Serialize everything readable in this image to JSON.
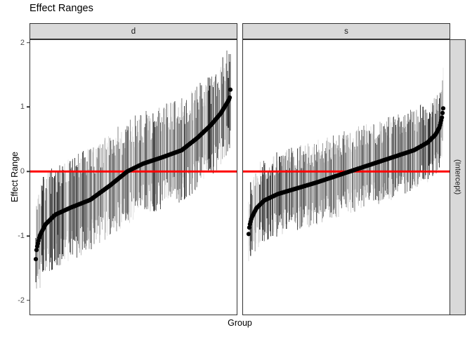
{
  "title": "Effect Ranges",
  "axes": {
    "y_title": "Effect Range",
    "x_title": "Group",
    "y_tick_labels": [
      "2",
      "1",
      "0",
      "-1",
      "-2"
    ]
  },
  "facets": {
    "column_labels": [
      "d",
      "s"
    ],
    "row_label": "(Intercept)"
  },
  "colors": {
    "reference_line": "#ff0000",
    "strip_fill": "#d9d9d9",
    "panel_border": "#333333",
    "point_color": "#000000",
    "axis_text": "#4d4d4d"
  },
  "chart_data": {
    "type": "pointrange-caterpillar",
    "title": "Effect Ranges",
    "xlabel": "Group",
    "ylabel": "Effect Range",
    "ylim": [
      -2.22,
      2.04
    ],
    "yticks": [
      2,
      1,
      0,
      -1,
      -2
    ],
    "x_tick_labels": "none",
    "reference_line_y": 0,
    "legend": "none",
    "grid": "off",
    "facet_row_label": "(Intercept)",
    "facets": [
      {
        "label": "d",
        "n_groups": 285,
        "estimate_range": [
          -1.36,
          1.27
        ],
        "estimate_quantiles": [
          [
            0,
            -1.36
          ],
          [
            0.004,
            -1.2
          ],
          [
            0.02,
            -1.0
          ],
          [
            0.05,
            -0.82
          ],
          [
            0.1,
            -0.67
          ],
          [
            0.18,
            -0.56
          ],
          [
            0.28,
            -0.44
          ],
          [
            0.38,
            -0.22
          ],
          [
            0.47,
            0.0
          ],
          [
            0.55,
            0.12
          ],
          [
            0.65,
            0.22
          ],
          [
            0.75,
            0.33
          ],
          [
            0.83,
            0.52
          ],
          [
            0.9,
            0.72
          ],
          [
            0.95,
            0.9
          ],
          [
            0.98,
            1.05
          ],
          [
            0.996,
            1.13
          ],
          [
            1.0,
            1.27
          ]
        ],
        "bar_half_length_range": [
          0.32,
          0.82
        ],
        "seed": 7
      },
      {
        "label": "s",
        "n_groups": 300,
        "estimate_range": [
          -0.97,
          0.98
        ],
        "estimate_quantiles": [
          [
            0,
            -0.97
          ],
          [
            0.004,
            -0.85
          ],
          [
            0.015,
            -0.72
          ],
          [
            0.04,
            -0.57
          ],
          [
            0.08,
            -0.45
          ],
          [
            0.15,
            -0.35
          ],
          [
            0.25,
            -0.26
          ],
          [
            0.35,
            -0.17
          ],
          [
            0.45,
            -0.07
          ],
          [
            0.55,
            0.03
          ],
          [
            0.65,
            0.13
          ],
          [
            0.75,
            0.23
          ],
          [
            0.85,
            0.33
          ],
          [
            0.92,
            0.45
          ],
          [
            0.96,
            0.57
          ],
          [
            0.98,
            0.68
          ],
          [
            0.993,
            0.83
          ],
          [
            1.0,
            0.98
          ]
        ],
        "bar_half_length_range": [
          0.26,
          0.66
        ],
        "seed": 13
      }
    ]
  }
}
